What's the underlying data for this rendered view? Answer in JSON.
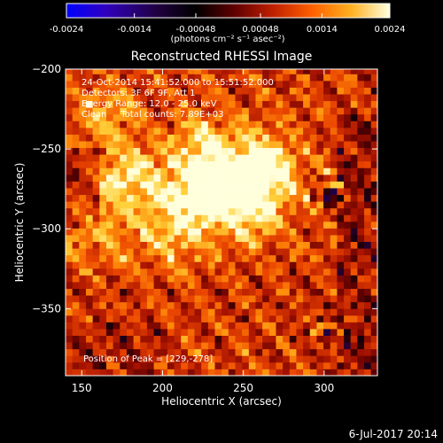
{
  "colorbar": {
    "tick_labels": [
      "-0.0024",
      "-0.0014",
      "-0.00048",
      "0.00048",
      "0.0014",
      "0.0024"
    ],
    "units_label": "(photons cm⁻² s⁻¹ asec⁻²)",
    "range": [
      -0.0024,
      0.0024
    ],
    "colors": [
      "#0000ff",
      "#4000a0",
      "#000000",
      "#500000",
      "#a01000",
      "#ff4000",
      "#ff9000",
      "#ffd040",
      "#ffffd0"
    ]
  },
  "chart_data": {
    "type": "heatmap",
    "title": "Reconstructed RHESSI Image",
    "xlabel": "Heliocentric X (arcsec)",
    "ylabel": "Heliocentric Y (arcsec)",
    "xlim": [
      140,
      333
    ],
    "ylim": [
      -392,
      -200
    ],
    "x_ticks": [
      150,
      200,
      250,
      300
    ],
    "y_ticks": [
      -200,
      -250,
      -300,
      -350
    ],
    "peak": [
      229,
      -278
    ],
    "annotations": [
      "24-Oct-2014 15:41:52.000 to 15:51:52.000",
      "Detectors: 3F 6F 9F, Att 1",
      "Energy Range: 12.0 - 25.0 keV",
      "Clean     Total counts: 7.89E+03",
      "Position of Peak = [229,-278]"
    ]
  },
  "footer": {
    "timestamp": "6-Jul-2017 20:14"
  }
}
